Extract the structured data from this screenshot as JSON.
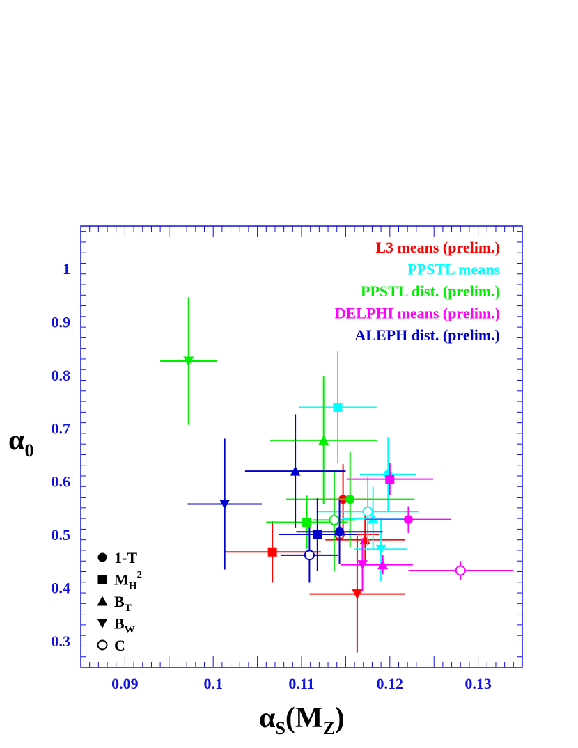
{
  "chart_data": {
    "type": "scatter",
    "title": "",
    "xlabel": {
      "main": "α",
      "sub": "S",
      "paren_open": "(M",
      "paren_sub": "Z",
      "paren_close": ")"
    },
    "ylabel": {
      "main": "α",
      "sub": "0"
    },
    "xlim": [
      0.085,
      0.135
    ],
    "ylim": [
      0.25,
      1.08
    ],
    "x_ticks": [
      {
        "value": 0.09,
        "label": "0.09"
      },
      {
        "value": 0.1,
        "label": "0.1"
      },
      {
        "value": 0.11,
        "label": "0.11"
      },
      {
        "value": 0.12,
        "label": "0.12"
      },
      {
        "value": 0.13,
        "label": "0.13"
      }
    ],
    "y_ticks": [
      {
        "value": 0.3,
        "label": "0.3"
      },
      {
        "value": 0.4,
        "label": "0.4"
      },
      {
        "value": 0.5,
        "label": "0.5"
      },
      {
        "value": 0.6,
        "label": "0.6"
      },
      {
        "value": 0.7,
        "label": "0.7"
      },
      {
        "value": 0.8,
        "label": "0.8"
      },
      {
        "value": 0.9,
        "label": "0.9"
      },
      {
        "value": 1.0,
        "label": "1"
      }
    ],
    "grid": false,
    "series_legend_position": "top-right",
    "series": [
      {
        "name": "L3 means (prelim.)",
        "color": "#ff0000",
        "points": [
          {
            "obs": "1-T",
            "x": 0.1147,
            "xerr": 0.0034,
            "y": 0.566,
            "yerr": 0.066
          },
          {
            "obs": "MH2",
            "x": 0.1067,
            "xerr": 0.0055,
            "y": 0.467,
            "yerr": 0.058
          },
          {
            "obs": "BT",
            "x": 0.1172,
            "xerr": 0.0045,
            "y": 0.49,
            "yerr": 0.045
          },
          {
            "obs": "BW",
            "x": 0.1163,
            "xerr": 0.0054,
            "y": 0.388,
            "yerr": 0.11
          },
          {
            "obs": "C",
            "x": 0.1143,
            "xerr": 0.0045,
            "y": 0.5,
            "yerr": 0.045
          }
        ]
      },
      {
        "name": "PPSTL means",
        "color": "#00ffff",
        "points": [
          {
            "obs": "1-T",
            "x": 0.1198,
            "xerr": 0.0032,
            "y": 0.613,
            "yerr": 0.07
          },
          {
            "obs": "MH2",
            "x": 0.1141,
            "xerr": 0.0044,
            "y": 0.739,
            "yerr": 0.105
          },
          {
            "obs": "BT",
            "x": 0.1181,
            "xerr": 0.0035,
            "y": 0.53,
            "yerr": 0.06
          },
          {
            "obs": "BW",
            "x": 0.119,
            "xerr": 0.003,
            "y": 0.472,
            "yerr": 0.06
          },
          {
            "obs": "C",
            "x": 0.1175,
            "xerr": 0.0058,
            "y": 0.543,
            "yerr": 0.065
          }
        ]
      },
      {
        "name": "PPSTL dist. (prelim.)",
        "color": "#00ee00",
        "points": [
          {
            "obs": "1-T",
            "x": 0.1155,
            "xerr": 0.0073,
            "y": 0.566,
            "yerr": 0.09
          },
          {
            "obs": "MH2",
            "x": 0.1106,
            "xerr": 0.0046,
            "y": 0.523,
            "yerr": 0.05
          },
          {
            "obs": "BT",
            "x": 0.1125,
            "xerr": 0.0061,
            "y": 0.677,
            "yerr": 0.12
          },
          {
            "obs": "BW",
            "x": 0.0972,
            "xerr": 0.0032,
            "y": 0.826,
            "yerr": 0.12
          },
          {
            "obs": "C",
            "x": 0.1137,
            "xerr": 0.0024,
            "y": 0.527,
            "yerr": 0.095
          }
        ]
      },
      {
        "name": "DELPHI means (prelim.)",
        "color": "#ff00ff",
        "points": [
          {
            "obs": "1-T",
            "x": 0.1221,
            "xerr": 0.0048,
            "y": 0.528,
            "yerr": 0.025
          },
          {
            "obs": "MH2",
            "x": 0.12,
            "xerr": 0.0049,
            "y": 0.604,
            "yerr": 0.03
          },
          {
            "obs": "BT",
            "x": 0.1192,
            "xerr": 0.0034,
            "y": 0.443,
            "yerr": 0.018
          },
          {
            "obs": "BW",
            "x": 0.1169,
            "xerr": 0.0025,
            "y": 0.443,
            "yerr": 0.05
          },
          {
            "obs": "C",
            "x": 0.128,
            "xerr": 0.0059,
            "y": 0.432,
            "yerr": 0.018
          }
        ]
      },
      {
        "name": "ALEPH dist. (prelim.)",
        "color": "#0000cc",
        "points": [
          {
            "obs": "1-T",
            "x": 0.1143,
            "xerr": 0.0049,
            "y": 0.505,
            "yerr": 0.06
          },
          {
            "obs": "MH2",
            "x": 0.1118,
            "xerr": 0.0044,
            "y": 0.5,
            "yerr": 0.068
          },
          {
            "obs": "BT",
            "x": 0.1093,
            "xerr": 0.0057,
            "y": 0.619,
            "yerr": 0.107
          },
          {
            "obs": "BW",
            "x": 0.1013,
            "xerr": 0.0042,
            "y": 0.557,
            "yerr": 0.123
          },
          {
            "obs": "C",
            "x": 0.1109,
            "xerr": 0.0032,
            "y": 0.461,
            "yerr": 0.052
          }
        ]
      }
    ],
    "symbol_legend_position": "bottom-left",
    "symbol_legend": [
      {
        "obs": "1-T",
        "marker": "filled-circle",
        "label": "1-T",
        "sub": "",
        "sup": ""
      },
      {
        "obs": "MH2",
        "marker": "filled-square",
        "label": "M",
        "sub": "H",
        "sup": "2"
      },
      {
        "obs": "BT",
        "marker": "filled-triangle-up",
        "label": "B",
        "sub": "T",
        "sup": ""
      },
      {
        "obs": "BW",
        "marker": "filled-triangle-down",
        "label": "B",
        "sub": "W",
        "sup": ""
      },
      {
        "obs": "C",
        "marker": "open-circle",
        "label": "C",
        "sub": "",
        "sup": ""
      }
    ],
    "axis_color": "#1010e0"
  }
}
